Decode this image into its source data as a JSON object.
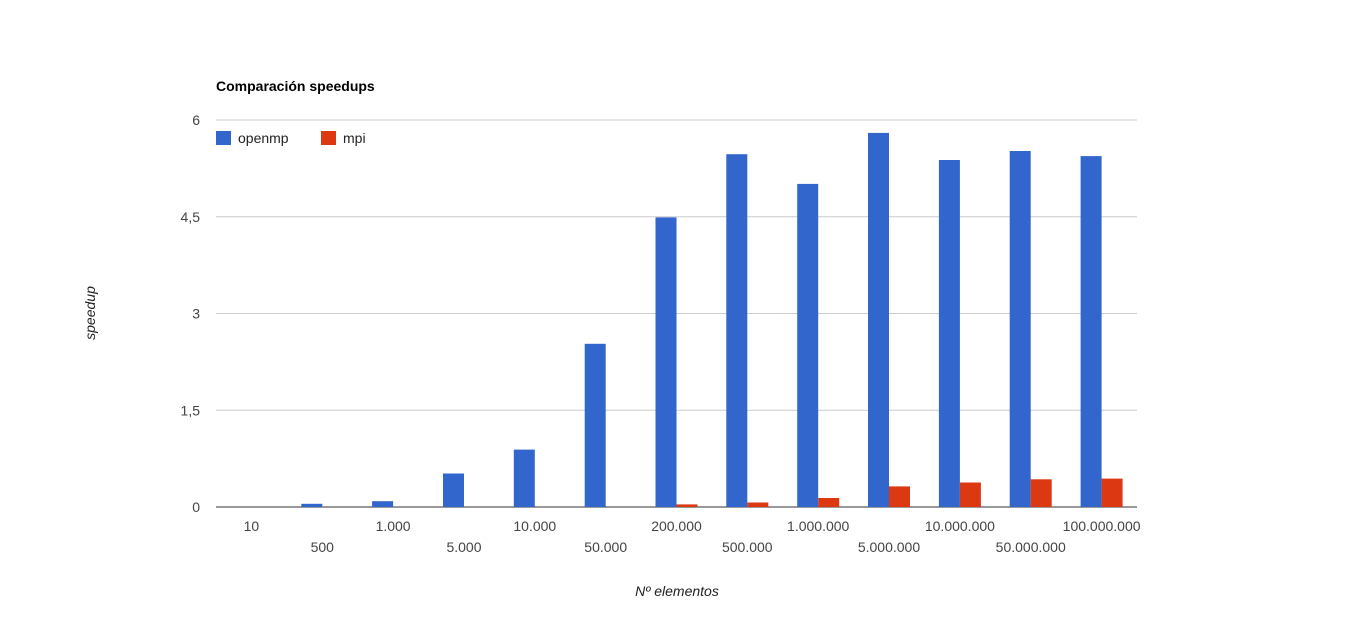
{
  "chart_data": {
    "type": "bar",
    "title": "Comparación speedups",
    "xlabel": "Nº elementos",
    "ylabel": "speedup",
    "categories": [
      "10",
      "500",
      "1.000",
      "5.000",
      "10.000",
      "50.000",
      "200.000",
      "500.000",
      "1.000.000",
      "5.000.000",
      "10.000.000",
      "50.000.000",
      "100.000.000"
    ],
    "series": [
      {
        "name": "openmp",
        "color": "#3366cc",
        "values": [
          0.0,
          0.05,
          0.09,
          0.52,
          0.89,
          2.53,
          4.49,
          5.47,
          5.01,
          5.8,
          5.38,
          5.52,
          5.44
        ]
      },
      {
        "name": "mpi",
        "color": "#dc3912",
        "values": [
          0.0,
          0.0,
          0.0,
          0.0,
          0.0,
          0.0,
          0.04,
          0.07,
          0.14,
          0.32,
          0.38,
          0.43,
          0.44
        ]
      }
    ],
    "yticks": [
      "0",
      "1,5",
      "3",
      "4,5",
      "6"
    ],
    "ylim": [
      0,
      6
    ],
    "grid": true,
    "legend": "top-left"
  }
}
